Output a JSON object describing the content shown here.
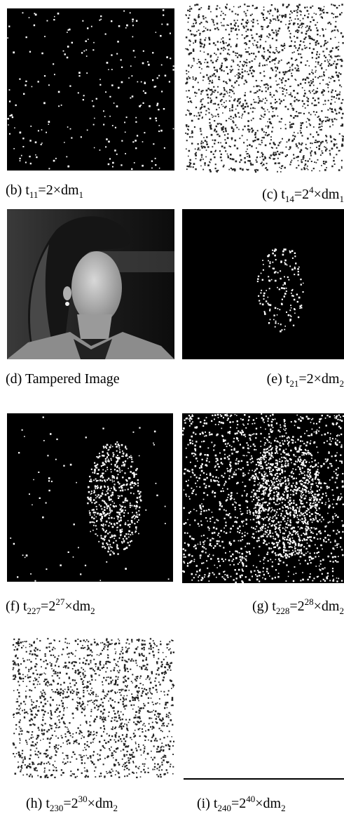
{
  "panels": [
    {
      "caption": [
        {
          "t": "(b) t"
        },
        {
          "sub": "11"
        },
        {
          "t": "=2×dm"
        },
        {
          "sub": "1"
        }
      ]
    },
    {
      "caption": [
        {
          "t": "(c) t"
        },
        {
          "sub": "14"
        },
        {
          "t": "=2"
        },
        {
          "sup": "4"
        },
        {
          "t": "×dm"
        },
        {
          "sub": "1"
        }
      ]
    },
    {
      "caption": [
        {
          "t": "(d) Tampered Image"
        }
      ]
    },
    {
      "caption": [
        {
          "t": "(e) t"
        },
        {
          "sub": "21"
        },
        {
          "t": "=2×dm"
        },
        {
          "sub": "2"
        }
      ]
    },
    {
      "caption": [
        {
          "t": "(f) t"
        },
        {
          "sub": "227"
        },
        {
          "t": "=2"
        },
        {
          "sup": "27"
        },
        {
          "t": "×dm"
        },
        {
          "sub": "2"
        }
      ]
    },
    {
      "caption": [
        {
          "t": "(g) t"
        },
        {
          "sub": "228"
        },
        {
          "t": "=2"
        },
        {
          "sup": "28"
        },
        {
          "t": "×dm"
        },
        {
          "sub": "2"
        }
      ]
    },
    {
      "caption": [
        {
          "t": "(h) t"
        },
        {
          "sub": "230"
        },
        {
          "t": "=2"
        },
        {
          "sup": "30"
        },
        {
          "t": "×dm"
        },
        {
          "sub": "2"
        }
      ]
    },
    {
      "caption": [
        {
          "t": "(i) t"
        },
        {
          "sub": "240"
        },
        {
          "t": "=2"
        },
        {
          "sup": "40"
        },
        {
          "t": "×dm"
        },
        {
          "sub": "2"
        }
      ]
    }
  ]
}
